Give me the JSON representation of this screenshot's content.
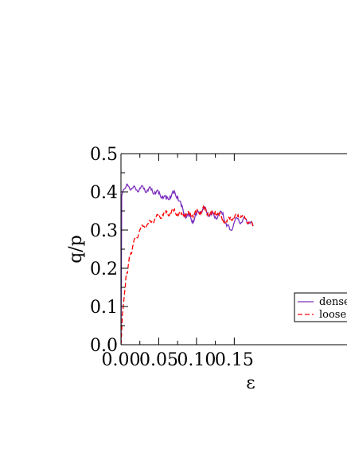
{
  "chart_data": {
    "type": "line",
    "xlabel": "ε",
    "ylabel": "q/p",
    "xlim": [
      0.0,
      0.175
    ],
    "ylim": [
      0.0,
      0.5
    ],
    "xticks": [
      "0.00",
      "0.05",
      "0.10",
      "0.15"
    ],
    "yticks": [
      "0.0",
      "0.1",
      "0.2",
      "0.3",
      "0.4",
      "0.5"
    ],
    "legend_position": "bottom-right",
    "series": [
      {
        "name": "dense",
        "color": "#7b2fbe",
        "style": "solid",
        "x": [
          0.0,
          0.001,
          0.003,
          0.006,
          0.01,
          0.015,
          0.02,
          0.025,
          0.03,
          0.035,
          0.04,
          0.045,
          0.05,
          0.055,
          0.06,
          0.065,
          0.07,
          0.075,
          0.08,
          0.085,
          0.09,
          0.095,
          0.1,
          0.105,
          0.11,
          0.115,
          0.12,
          0.125,
          0.13,
          0.135,
          0.14,
          0.145,
          0.15,
          0.155,
          0.16,
          0.165,
          0.17,
          0.175
        ],
        "y": [
          0.0,
          0.39,
          0.405,
          0.41,
          0.415,
          0.41,
          0.405,
          0.41,
          0.408,
          0.405,
          0.405,
          0.4,
          0.395,
          0.39,
          0.38,
          0.39,
          0.395,
          0.39,
          0.36,
          0.34,
          0.335,
          0.325,
          0.34,
          0.35,
          0.355,
          0.345,
          0.34,
          0.335,
          0.34,
          0.345,
          0.31,
          0.3,
          0.32,
          0.33,
          0.32,
          0.33,
          0.32,
          0.31
        ]
      },
      {
        "name": "loose",
        "color": "#ff0000",
        "style": "dashed",
        "x": [
          0.0,
          0.001,
          0.002,
          0.004,
          0.006,
          0.008,
          0.01,
          0.013,
          0.016,
          0.02,
          0.025,
          0.03,
          0.035,
          0.04,
          0.045,
          0.05,
          0.055,
          0.06,
          0.065,
          0.07,
          0.075,
          0.08,
          0.085,
          0.09,
          0.095,
          0.1,
          0.105,
          0.11,
          0.115,
          0.12,
          0.125,
          0.13,
          0.135,
          0.14,
          0.145,
          0.15,
          0.155,
          0.16,
          0.165,
          0.17,
          0.175
        ],
        "y": [
          0.0,
          0.04,
          0.08,
          0.12,
          0.16,
          0.19,
          0.21,
          0.24,
          0.26,
          0.28,
          0.3,
          0.31,
          0.315,
          0.32,
          0.33,
          0.335,
          0.34,
          0.345,
          0.345,
          0.35,
          0.345,
          0.34,
          0.345,
          0.34,
          0.34,
          0.345,
          0.35,
          0.355,
          0.345,
          0.34,
          0.35,
          0.34,
          0.33,
          0.32,
          0.335,
          0.33,
          0.34,
          0.335,
          0.33,
          0.32,
          0.31
        ]
      }
    ]
  }
}
